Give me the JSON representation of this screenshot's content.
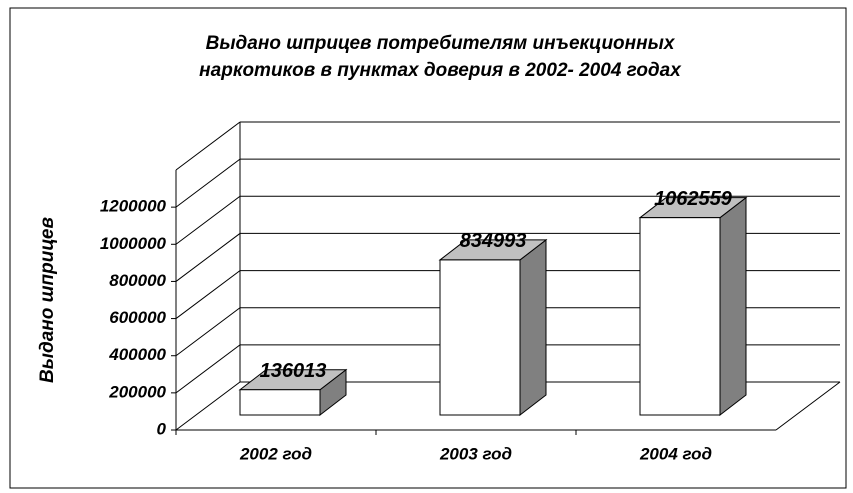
{
  "chart_data": {
    "type": "bar3d",
    "title": [
      "Выдано шприцев потребителям инъекционных",
      "наркотиков в пунктах доверия в 2002- 2004 годах"
    ],
    "y_label": "Выдано шприцев",
    "categories": [
      "2002 год",
      "2003 год",
      "2004 год"
    ],
    "values": [
      136013,
      834993,
      1062559
    ],
    "color": "#ffffff",
    "side_color": "#808080",
    "top_color": "#c0c0c0",
    "ylim": [
      0,
      1400000
    ],
    "yticks": [
      0,
      200000,
      400000,
      600000,
      800000,
      1000000,
      1200000
    ],
    "grid": true
  }
}
